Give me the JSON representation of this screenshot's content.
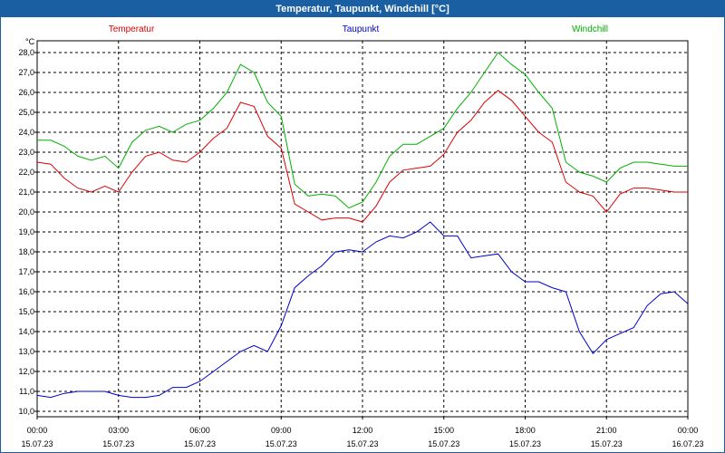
{
  "window": {
    "title": "Temperatur, Taupunkt, Windchill [°C]"
  },
  "chart_data": {
    "type": "line",
    "title": "Temperatur, Taupunkt, Windchill [°C]",
    "ylabel": "°C",
    "ylim": [
      10.0,
      28.0
    ],
    "y_ticks": [
      "10,0",
      "11,0",
      "12,0",
      "13,0",
      "14,0",
      "15,0",
      "16,0",
      "17,0",
      "18,0",
      "19,0",
      "20,0",
      "21,0",
      "22,0",
      "23,0",
      "24,0",
      "25,0",
      "26,0",
      "27,0",
      "28,0"
    ],
    "x_ticks": [
      {
        "time": "00:00",
        "date": "15.07.23"
      },
      {
        "time": "03:00",
        "date": "15.07.23"
      },
      {
        "time": "06:00",
        "date": "15.07.23"
      },
      {
        "time": "09:00",
        "date": "15.07.23"
      },
      {
        "time": "12:00",
        "date": "15.07.23"
      },
      {
        "time": "15:00",
        "date": "15.07.23"
      },
      {
        "time": "18:00",
        "date": "15.07.23"
      },
      {
        "time": "21:00",
        "date": "15.07.23"
      },
      {
        "time": "00:00",
        "date": "16.07.23"
      }
    ],
    "grid": true,
    "x_hours": [
      0,
      0.5,
      1,
      1.5,
      2,
      2.5,
      3,
      3.5,
      4,
      4.5,
      5,
      5.5,
      6,
      6.5,
      7,
      7.5,
      8,
      8.5,
      9,
      9.5,
      10,
      10.5,
      11,
      11.5,
      12,
      12.5,
      13,
      13.5,
      14,
      14.5,
      15,
      15.5,
      16,
      16.5,
      17,
      17.5,
      18,
      18.5,
      19,
      19.5,
      20,
      20.5,
      21,
      21.5,
      22,
      22.5,
      23,
      23.5,
      24
    ],
    "series": [
      {
        "name": "Temperatur",
        "color": "#e00000",
        "values": [
          22.5,
          22.4,
          21.7,
          21.2,
          21.0,
          21.3,
          21.0,
          22.0,
          22.8,
          23.0,
          22.6,
          22.5,
          23.0,
          23.7,
          24.2,
          25.5,
          25.3,
          23.8,
          23.2,
          20.4,
          20.0,
          19.6,
          19.7,
          19.7,
          19.5,
          20.3,
          21.5,
          22.1,
          22.2,
          22.3,
          22.9,
          24.0,
          24.6,
          25.5,
          26.1,
          25.6,
          24.8,
          24.0,
          23.5,
          21.5,
          21.0,
          20.8,
          20.0,
          20.9,
          21.2,
          21.2,
          21.1,
          21.0,
          21.0
        ]
      },
      {
        "name": "Taupunkt",
        "color": "#0000d0",
        "values": [
          10.8,
          10.7,
          10.9,
          11.0,
          11.0,
          11.0,
          10.8,
          10.7,
          10.7,
          10.8,
          11.2,
          11.2,
          11.5,
          12.0,
          12.5,
          13.0,
          13.3,
          13.0,
          14.3,
          16.2,
          16.8,
          17.3,
          18.0,
          18.1,
          18.0,
          18.5,
          18.8,
          18.7,
          19.0,
          19.5,
          18.8,
          18.8,
          17.7,
          17.8,
          17.9,
          17.0,
          16.5,
          16.5,
          16.2,
          16.0,
          14.0,
          12.9,
          13.6,
          13.9,
          14.2,
          15.3,
          15.9,
          16.0,
          15.4
        ]
      },
      {
        "name": "Windchill",
        "color": "#00b000",
        "values": [
          23.6,
          23.6,
          23.3,
          22.8,
          22.6,
          22.8,
          22.2,
          23.5,
          24.1,
          24.3,
          24.0,
          24.4,
          24.6,
          25.2,
          26.0,
          27.4,
          27.0,
          25.5,
          24.8,
          21.4,
          20.8,
          20.9,
          20.8,
          20.2,
          20.5,
          21.5,
          22.8,
          23.4,
          23.4,
          23.8,
          24.2,
          25.2,
          26.0,
          27.0,
          28.0,
          27.4,
          26.9,
          26.0,
          25.2,
          22.5,
          22.0,
          21.8,
          21.5,
          22.2,
          22.5,
          22.5,
          22.4,
          22.3,
          22.3
        ]
      }
    ]
  }
}
